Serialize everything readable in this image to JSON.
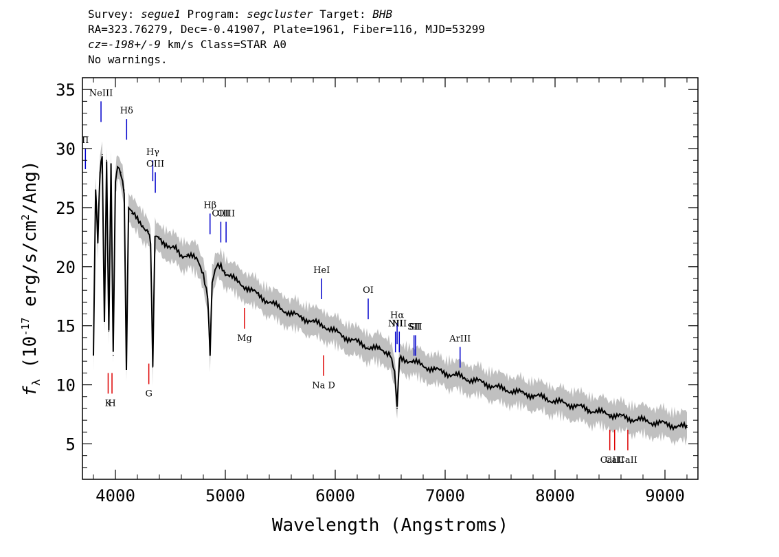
{
  "header": {
    "survey_label": "Survey:",
    "survey": "segue1",
    "program_label": "Program:",
    "program": "segcluster",
    "target_label": "Target:",
    "target": "BHB",
    "coords_line": "RA=323.76279, Dec=-0.41907, Plate=1961, Fiber=116, MJD=53299",
    "cz_label": "cz=",
    "cz_value": "-198+/-9",
    "cz_unit_class": "km/s Class=STAR A0",
    "warnings": "No warnings."
  },
  "chart_data": {
    "type": "line",
    "xlabel": "Wavelength (Angstroms)",
    "ylabel": "f_λ (10^-17 erg/s/cm^2/Ang)",
    "xlim": [
      3700,
      9300
    ],
    "ylim": [
      2,
      36
    ],
    "xticks": [
      4000,
      5000,
      6000,
      7000,
      8000,
      9000
    ],
    "yticks": [
      5,
      10,
      15,
      20,
      25,
      30,
      35
    ],
    "colors": {
      "flux": "#000000",
      "error_band": "#c0c0c0",
      "emission": "#0000cc",
      "absorption": "#dd0000"
    },
    "series": [
      {
        "x": [
          3800,
          3820,
          3840,
          3860,
          3880,
          3900,
          3920,
          3940,
          3960,
          3980,
          4000,
          4020,
          4050,
          4080,
          4100,
          4120,
          4150,
          4200,
          4250,
          4300,
          4320,
          4340,
          4360,
          4400,
          4450,
          4500,
          4550,
          4600,
          4650,
          4700,
          4750,
          4800,
          4840,
          4861,
          4880,
          4920,
          4960,
          5000,
          5100,
          5200,
          5300,
          5400,
          5500,
          5600,
          5700,
          5800,
          5900,
          6000,
          6100,
          6200,
          6300,
          6400,
          6500,
          6540,
          6563,
          6585,
          6620,
          6700,
          6800,
          6900,
          7000,
          7100,
          7200,
          7300,
          7400,
          7500,
          7600,
          7700,
          7800,
          7900,
          8000,
          8100,
          8200,
          8300,
          8400,
          8500,
          8600,
          8700,
          8800,
          8900,
          9000,
          9100,
          9200
        ],
        "y": [
          12.5,
          26.5,
          22,
          28,
          29.5,
          15.5,
          29,
          14.5,
          28.5,
          12.5,
          27,
          28.5,
          28,
          26.5,
          11.5,
          25,
          24.5,
          24,
          23.5,
          23,
          22,
          11.5,
          22.5,
          22.5,
          22,
          21.5,
          21.5,
          21,
          21,
          20.8,
          20.5,
          19.5,
          17.5,
          12.5,
          18.5,
          20,
          20.2,
          19.5,
          18.8,
          18.2,
          17.6,
          17,
          16.5,
          16,
          15.7,
          15.3,
          15,
          14.5,
          14,
          13.6,
          13.2,
          13,
          12.7,
          11,
          8,
          12.2,
          12.2,
          12,
          11.6,
          11.3,
          11,
          10.8,
          10.5,
          10.3,
          10,
          9.7,
          9.5,
          9.3,
          9.1,
          8.9,
          8.6,
          8.4,
          8.2,
          7.9,
          7.7,
          7.5,
          7.3,
          7.1,
          7,
          6.8,
          6.7,
          6.5,
          6.4
        ]
      }
    ],
    "line_labels": [
      {
        "label": "II",
        "wavelength": 3727,
        "y": 30,
        "kind": "emission"
      },
      {
        "label": "NeIII",
        "wavelength": 3869,
        "y": 34,
        "kind": "emission"
      },
      {
        "label": "Hδ",
        "wavelength": 4102,
        "y": 32.5,
        "kind": "emission"
      },
      {
        "label": "Hγ",
        "wavelength": 4340,
        "y": 29,
        "kind": "emission"
      },
      {
        "label": "OIII",
        "wavelength": 4363,
        "y": 28,
        "kind": "emission"
      },
      {
        "label": "Hβ",
        "wavelength": 4861,
        "y": 24.5,
        "kind": "emission"
      },
      {
        "label": "OIII",
        "wavelength": 4959,
        "y": 23.8,
        "kind": "emission"
      },
      {
        "label": "OIII",
        "wavelength": 5007,
        "y": 23.8,
        "kind": "emission"
      },
      {
        "label": "HeI",
        "wavelength": 5876,
        "y": 19,
        "kind": "emission"
      },
      {
        "label": "OI",
        "wavelength": 6300,
        "y": 17.3,
        "kind": "emission"
      },
      {
        "label": "NII",
        "wavelength": 6548,
        "y": 14.5,
        "kind": "emission"
      },
      {
        "label": "Hα",
        "wavelength": 6563,
        "y": 15.2,
        "kind": "emission"
      },
      {
        "label": "NII",
        "wavelength": 6583,
        "y": 14.5,
        "kind": "emission"
      },
      {
        "label": "SII",
        "wavelength": 6717,
        "y": 14.2,
        "kind": "emission"
      },
      {
        "label": "SII",
        "wavelength": 6731,
        "y": 14.2,
        "kind": "emission"
      },
      {
        "label": "ArIII",
        "wavelength": 7136,
        "y": 13.2,
        "kind": "emission"
      },
      {
        "label": "K",
        "wavelength": 3934,
        "y": 11,
        "kind": "absorption"
      },
      {
        "label": "H",
        "wavelength": 3969,
        "y": 11,
        "kind": "absorption"
      },
      {
        "label": "G",
        "wavelength": 4304,
        "y": 11.8,
        "kind": "absorption"
      },
      {
        "label": "Mg",
        "wavelength": 5175,
        "y": 16.5,
        "kind": "absorption"
      },
      {
        "label": "Na D",
        "wavelength": 5894,
        "y": 12.5,
        "kind": "absorption"
      },
      {
        "label": "CaII",
        "wavelength": 8498,
        "y": 6.2,
        "kind": "absorption"
      },
      {
        "label": "CaII",
        "wavelength": 8542,
        "y": 6.2,
        "kind": "absorption"
      },
      {
        "label": "CaII",
        "wavelength": 8662,
        "y": 6.2,
        "kind": "absorption"
      }
    ]
  }
}
